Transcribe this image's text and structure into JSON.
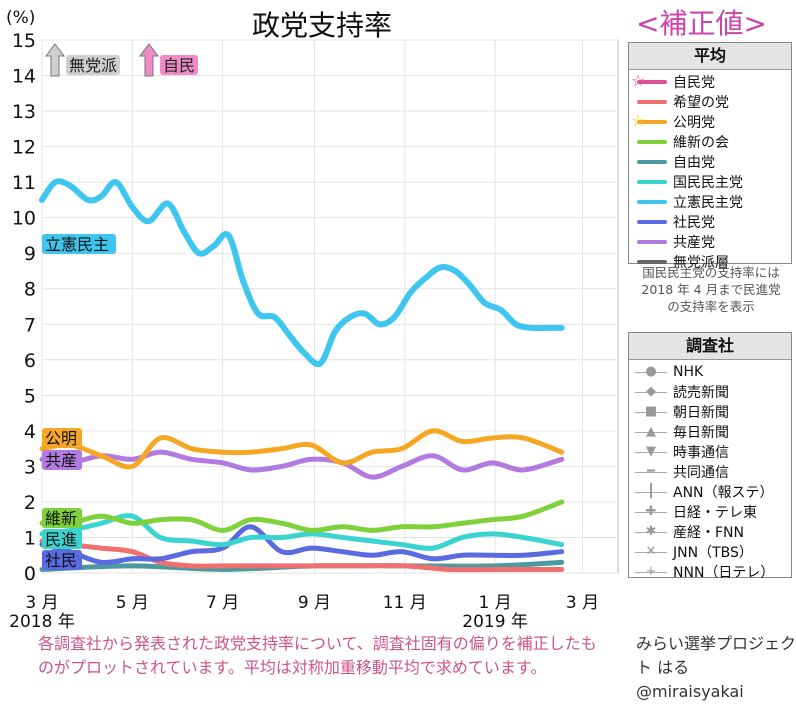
{
  "title": "政党支持率",
  "subtitle": "<補正値>",
  "y_unit": "(%)",
  "legend_avg": {
    "header": "平均",
    "items": [
      {
        "label": "自民党",
        "color": "#e0509a",
        "star": "#e0509a"
      },
      {
        "label": "希望の党",
        "color": "#f07070"
      },
      {
        "label": "公明党",
        "color": "#f5a623",
        "star": "#f5c400"
      },
      {
        "label": "維新の会",
        "color": "#7ed13a"
      },
      {
        "label": "自由党",
        "color": "#4a9aa0"
      },
      {
        "label": "国民民主党",
        "color": "#3ad4d0"
      },
      {
        "label": "立憲民主党",
        "color": "#3ec6f0"
      },
      {
        "label": "社民党",
        "color": "#5a6ae0"
      },
      {
        "label": "共産党",
        "color": "#b07ae0"
      },
      {
        "label": "無党派層",
        "color": "#666666"
      }
    ],
    "note": "国民民主党の支持率には 2018 年 4 月まで民進党の支持率を表示"
  },
  "legend_pollster": {
    "header": "調査社",
    "items": [
      {
        "label": "NHK",
        "marker": "●"
      },
      {
        "label": "読売新聞",
        "marker": "◆"
      },
      {
        "label": "朝日新聞",
        "marker": "■"
      },
      {
        "label": "毎日新聞",
        "marker": "▲"
      },
      {
        "label": "時事通信",
        "marker": "▼"
      },
      {
        "label": "共同通信",
        "marker": "━"
      },
      {
        "label": "ANN（報ステ）",
        "marker": "┃"
      },
      {
        "label": "日経・テレ東",
        "marker": "✚"
      },
      {
        "label": "産経・FNN",
        "marker": "✱"
      },
      {
        "label": "JNN（TBS）",
        "marker": "✕"
      },
      {
        "label": "NNN（日テレ）",
        "marker": "+"
      }
    ]
  },
  "arrows": [
    {
      "label": "無党派",
      "color": "#cfcfcf",
      "text_color": "#222"
    },
    {
      "label": "自民",
      "color": "#f08ac8",
      "text_color": "#222"
    }
  ],
  "footnote": "各調査社から発表された政党支持率について、調査社固有の偏りを補正したものがプロットされています。平均は対称加重移動平均で求めています。",
  "credit": "みらい選挙プロジェクト はる @miraisyakai",
  "chart_data": {
    "type": "line",
    "ylim": [
      0,
      15
    ],
    "y_ticks": [
      "0",
      "1",
      "2",
      "3",
      "4",
      "5",
      "6",
      "7",
      "8",
      "9",
      "10",
      "11",
      "12",
      "13",
      "14",
      "15"
    ],
    "xlim": [
      "2018-03-01",
      "2019-03-25"
    ],
    "x_ticks": [
      {
        "date": "2018-03-01",
        "label": "3 月",
        "label2": "2018 年"
      },
      {
        "date": "2018-05-01",
        "label": "5 月"
      },
      {
        "date": "2018-07-01",
        "label": "7 月"
      },
      {
        "date": "2018-09-01",
        "label": "9 月"
      },
      {
        "date": "2018-11-01",
        "label": "11 月"
      },
      {
        "date": "2019-01-01",
        "label": "1 月",
        "label2": "2019 年"
      },
      {
        "date": "2019-03-01",
        "label": "3 月"
      }
    ],
    "grid": true,
    "series": [
      {
        "name": "立憲民主党",
        "label": "立憲民主",
        "color": "#3ec6f0",
        "x": [
          "2018-03-01",
          "2018-03-10",
          "2018-03-20",
          "2018-04-01",
          "2018-04-10",
          "2018-04-20",
          "2018-05-01",
          "2018-05-12",
          "2018-05-25",
          "2018-06-05",
          "2018-06-15",
          "2018-06-25",
          "2018-07-05",
          "2018-07-15",
          "2018-07-25",
          "2018-08-05",
          "2018-08-15",
          "2018-08-25",
          "2018-09-05",
          "2018-09-15",
          "2018-09-25",
          "2018-10-05",
          "2018-10-15",
          "2018-10-25",
          "2018-11-05",
          "2018-11-15",
          "2018-11-25",
          "2018-12-05",
          "2018-12-15",
          "2018-12-25",
          "2019-01-05",
          "2019-01-15",
          "2019-01-25",
          "2019-02-05",
          "2019-02-15"
        ],
        "y": [
          10.5,
          11.0,
          10.9,
          10.5,
          10.6,
          11.0,
          10.3,
          9.9,
          10.4,
          9.6,
          9.0,
          9.2,
          9.5,
          8.2,
          7.3,
          7.2,
          6.7,
          6.2,
          5.9,
          6.8,
          7.2,
          7.3,
          7.0,
          7.2,
          7.9,
          8.3,
          8.6,
          8.5,
          8.1,
          7.6,
          7.4,
          7.0,
          6.9,
          6.9,
          6.9
        ]
      },
      {
        "name": "公明党",
        "label": "公明",
        "color": "#f5a623",
        "x": [
          "2018-03-01",
          "2018-03-20",
          "2018-04-10",
          "2018-05-01",
          "2018-05-20",
          "2018-06-10",
          "2018-07-01",
          "2018-07-20",
          "2018-08-10",
          "2018-08-30",
          "2018-09-20",
          "2018-10-10",
          "2018-10-30",
          "2018-11-20",
          "2018-12-10",
          "2018-12-30",
          "2019-01-20",
          "2019-02-15"
        ],
        "y": [
          3.5,
          3.6,
          3.3,
          3.0,
          3.8,
          3.5,
          3.4,
          3.4,
          3.5,
          3.6,
          3.1,
          3.4,
          3.5,
          4.0,
          3.7,
          3.8,
          3.8,
          3.4
        ]
      },
      {
        "name": "共産党",
        "label": "共産",
        "color": "#b07ae0",
        "x": [
          "2018-03-01",
          "2018-03-20",
          "2018-04-10",
          "2018-05-01",
          "2018-05-20",
          "2018-06-10",
          "2018-07-01",
          "2018-07-20",
          "2018-08-10",
          "2018-08-30",
          "2018-09-20",
          "2018-10-10",
          "2018-10-30",
          "2018-11-20",
          "2018-12-10",
          "2018-12-30",
          "2019-01-20",
          "2019-02-15"
        ],
        "y": [
          3.2,
          3.1,
          3.3,
          3.2,
          3.4,
          3.2,
          3.1,
          2.9,
          3.0,
          3.2,
          3.1,
          2.7,
          3.0,
          3.3,
          2.9,
          3.1,
          2.9,
          3.2
        ]
      },
      {
        "name": "維新の会",
        "label": "維新",
        "color": "#7ed13a",
        "x": [
          "2018-03-01",
          "2018-03-20",
          "2018-04-10",
          "2018-05-01",
          "2018-05-20",
          "2018-06-10",
          "2018-07-01",
          "2018-07-20",
          "2018-08-10",
          "2018-08-30",
          "2018-09-20",
          "2018-10-10",
          "2018-10-30",
          "2018-11-20",
          "2018-12-10",
          "2018-12-30",
          "2019-01-20",
          "2019-02-15"
        ],
        "y": [
          1.4,
          1.4,
          1.6,
          1.4,
          1.5,
          1.5,
          1.2,
          1.5,
          1.4,
          1.2,
          1.3,
          1.2,
          1.3,
          1.3,
          1.4,
          1.5,
          1.6,
          2.0
        ]
      },
      {
        "name": "国民民主党",
        "label": "民進",
        "color": "#3ad4d0",
        "x": [
          "2018-03-01",
          "2018-03-20",
          "2018-04-10",
          "2018-05-01",
          "2018-05-20",
          "2018-06-10",
          "2018-07-01",
          "2018-07-20",
          "2018-08-10",
          "2018-08-30",
          "2018-09-20",
          "2018-10-10",
          "2018-10-30",
          "2018-11-20",
          "2018-12-10",
          "2018-12-30",
          "2019-01-20",
          "2019-02-15"
        ],
        "y": [
          1.1,
          1.2,
          1.4,
          1.6,
          1.0,
          0.9,
          0.8,
          1.0,
          1.0,
          1.1,
          1.0,
          0.9,
          0.8,
          0.7,
          1.0,
          1.1,
          1.0,
          0.8
        ]
      },
      {
        "name": "社民党",
        "label": "社民",
        "color": "#5a6ae0",
        "x": [
          "2018-03-01",
          "2018-03-20",
          "2018-04-10",
          "2018-05-01",
          "2018-05-20",
          "2018-06-10",
          "2018-07-01",
          "2018-07-20",
          "2018-08-10",
          "2018-08-30",
          "2018-09-20",
          "2018-10-10",
          "2018-10-30",
          "2018-11-20",
          "2018-12-10",
          "2018-12-30",
          "2019-01-20",
          "2019-02-15"
        ],
        "y": [
          0.8,
          0.6,
          0.3,
          0.4,
          0.4,
          0.6,
          0.7,
          1.3,
          0.6,
          0.7,
          0.6,
          0.5,
          0.6,
          0.4,
          0.5,
          0.5,
          0.5,
          0.6
        ]
      },
      {
        "name": "希望の党",
        "color": "#f07070",
        "x": [
          "2018-03-01",
          "2018-03-20",
          "2018-04-10",
          "2018-05-01",
          "2018-05-20",
          "2018-06-10",
          "2018-07-01",
          "2018-08-01",
          "2018-09-01",
          "2018-10-01",
          "2018-11-01",
          "2018-12-01",
          "2019-01-01",
          "2019-02-15"
        ],
        "y": [
          0.9,
          0.8,
          0.7,
          0.6,
          0.3,
          0.2,
          0.2,
          0.2,
          0.2,
          0.2,
          0.2,
          0.1,
          0.1,
          0.1
        ]
      },
      {
        "name": "自由党",
        "color": "#4a9aa0",
        "x": [
          "2018-03-01",
          "2018-05-01",
          "2018-07-01",
          "2018-09-01",
          "2018-11-01",
          "2019-01-01",
          "2019-02-15"
        ],
        "y": [
          0.1,
          0.2,
          0.1,
          0.2,
          0.2,
          0.2,
          0.3
        ]
      }
    ]
  }
}
